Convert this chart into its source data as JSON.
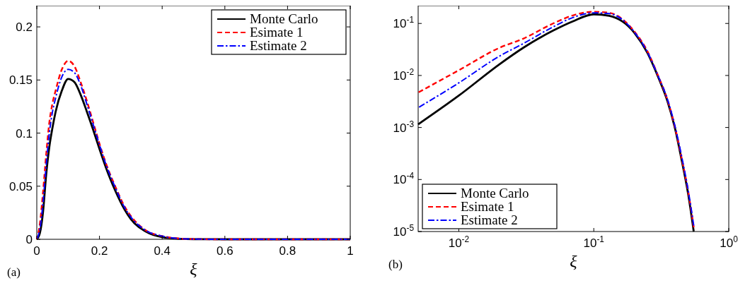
{
  "chart_data": [
    {
      "type": "line",
      "xlabel": "ξ",
      "annotations": [
        "(a)"
      ],
      "xlim": [
        0,
        1
      ],
      "ylim": [
        0,
        0.22
      ],
      "xticks": [
        0,
        0.2,
        0.4,
        0.6,
        0.8,
        1
      ],
      "yticks": [
        0,
        0.05,
        0.1,
        0.15,
        0.2
      ],
      "legend": "top right",
      "grid": false,
      "x": [
        0,
        0.01,
        0.02,
        0.03,
        0.04,
        0.05,
        0.06,
        0.08,
        0.1,
        0.12,
        0.14,
        0.16,
        0.18,
        0.2,
        0.22,
        0.25,
        0.28,
        0.3,
        0.35,
        0.4,
        0.45,
        0.5,
        0.6,
        0.8,
        1
      ],
      "series": [
        {
          "name": "Monte Carlo",
          "color": "#000000",
          "line_style": "solid",
          "values": [
            0,
            0.006,
            0.026,
            0.061,
            0.087,
            0.105,
            0.12,
            0.14,
            0.151,
            0.148,
            0.136,
            0.12,
            0.103,
            0.085,
            0.068,
            0.046,
            0.028,
            0.019,
            0.007,
            0.002,
            0.0005,
            0.0001,
            0,
            0,
            0
          ]
        },
        {
          "name": "Esimate 1",
          "color": "#ff0000",
          "line_style": "dashed",
          "values": [
            0,
            0.015,
            0.045,
            0.08,
            0.11,
            0.128,
            0.14,
            0.16,
            0.168,
            0.163,
            0.148,
            0.13,
            0.11,
            0.09,
            0.072,
            0.05,
            0.031,
            0.022,
            0.008,
            0.003,
            0.0008,
            0.0002,
            0,
            0,
            0
          ]
        },
        {
          "name": "Estimate 2",
          "color": "#0000ff",
          "line_style": "dashdot",
          "values": [
            0,
            0.01,
            0.035,
            0.07,
            0.1,
            0.12,
            0.133,
            0.153,
            0.16,
            0.157,
            0.145,
            0.127,
            0.108,
            0.089,
            0.071,
            0.049,
            0.03,
            0.021,
            0.008,
            0.003,
            0.0007,
            0.0002,
            0,
            0,
            0
          ]
        }
      ]
    },
    {
      "type": "line",
      "xlabel": "ξ",
      "annotations": [
        "(b)"
      ],
      "log": "xy",
      "xlim": [
        0.005,
        1
      ],
      "ylim": [
        1e-05,
        0.22
      ],
      "xticks": [
        {
          "value": 0.01,
          "label": "10$^{-2}$"
        },
        {
          "value": 0.1,
          "label": "10$^{-1}$"
        },
        {
          "value": 1,
          "label": "10$^{0}$"
        }
      ],
      "yticks": [
        {
          "value": 1e-05,
          "label": "10$^{-5}$"
        },
        {
          "value": 0.0001,
          "label": "10$^{-4}$"
        },
        {
          "value": 0.001,
          "label": "10$^{-3}$"
        },
        {
          "value": 0.01,
          "label": "10$^{-2}$"
        },
        {
          "value": 0.1,
          "label": "10$^{-1}$"
        }
      ],
      "legend": "bottom left",
      "grid": false,
      "x": [
        0.005,
        0.01,
        0.02,
        0.03,
        0.05,
        0.07,
        0.1,
        0.13,
        0.2,
        0.25,
        0.3,
        0.35,
        0.4,
        0.45,
        0.5,
        0.55
      ],
      "series": [
        {
          "name": "Monte Carlo",
          "color": "#000000",
          "line_style": "solid",
          "values": [
            0.00115,
            0.0041,
            0.0164,
            0.034,
            0.073,
            0.11,
            0.15,
            0.14,
            0.066,
            0.027,
            0.0093,
            0.0033,
            0.00095,
            0.00022,
            5.3e-05,
            1e-05
          ]
        },
        {
          "name": "Esimate 1",
          "color": "#ff0000",
          "line_style": "dashed",
          "values": [
            0.0047,
            0.0126,
            0.034,
            0.051,
            0.1,
            0.143,
            0.168,
            0.16,
            0.07,
            0.029,
            0.0098,
            0.0035,
            0.001,
            0.00024,
            6e-05,
            1.2e-05
          ]
        },
        {
          "name": "Estimate 2",
          "color": "#0000ff",
          "line_style": "dashdot",
          "values": [
            0.0024,
            0.0072,
            0.0235,
            0.041,
            0.086,
            0.13,
            0.16,
            0.155,
            0.068,
            0.028,
            0.0097,
            0.0036,
            0.00105,
            0.00026,
            6.3e-05,
            1.3e-05
          ]
        }
      ]
    }
  ]
}
